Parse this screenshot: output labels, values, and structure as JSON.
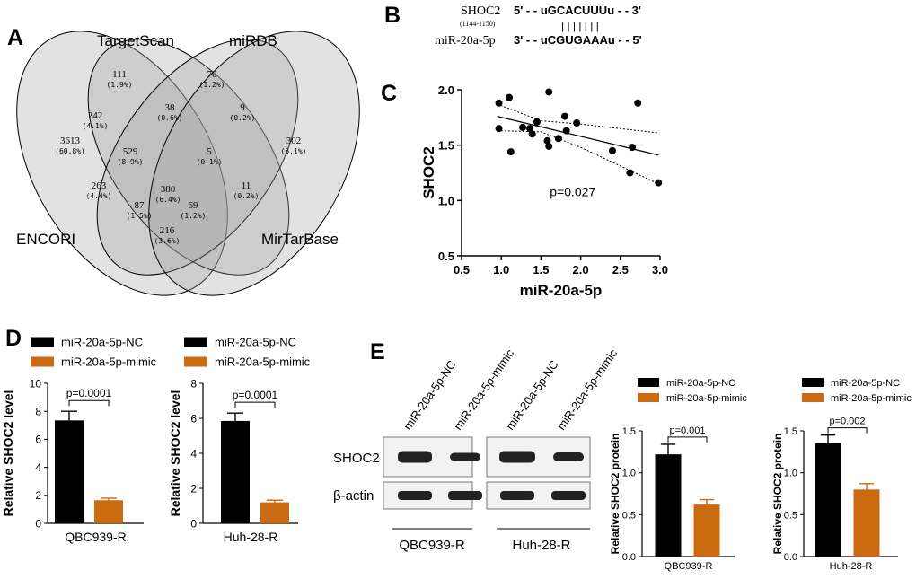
{
  "panel_labels": {
    "a": "A",
    "b": "B",
    "c": "C",
    "d": "D",
    "e": "E"
  },
  "colors": {
    "nc": "#000000",
    "mimic": "#cc6a12",
    "venn_fill": "#9e9e9e"
  },
  "venn": {
    "sets": [
      "TargetScan",
      "miRDB",
      "ENCORI",
      "MirTarBase"
    ],
    "regions": [
      {
        "count": "111",
        "pct": "(1.9%)"
      },
      {
        "count": "70",
        "pct": "(1.2%)"
      },
      {
        "count": "3613",
        "pct": "(60.8%)"
      },
      {
        "count": "242",
        "pct": "(4.1%)"
      },
      {
        "count": "38",
        "pct": "(0.6%)"
      },
      {
        "count": "9",
        "pct": "(0.2%)"
      },
      {
        "count": "302",
        "pct": "(5.1%)"
      },
      {
        "count": "529",
        "pct": "(8.9%)"
      },
      {
        "count": "5",
        "pct": "(0.1%)"
      },
      {
        "count": "380",
        "pct": "(6.4%)"
      },
      {
        "count": "263",
        "pct": "(4.4%)"
      },
      {
        "count": "11",
        "pct": "(0.2%)"
      },
      {
        "count": "87",
        "pct": "(1.5%)"
      },
      {
        "count": "69",
        "pct": "(1.2%)"
      },
      {
        "count": "216",
        "pct": "(3.6%)"
      }
    ]
  },
  "binding": {
    "gene": "SHOC2",
    "gene_pos": "(1144-1150)",
    "mirna": "miR-20a-5p",
    "gene_seq": "5' - - uGCACUUUu - - 3'",
    "mirna_seq": "3' - - uCGUGAAAu - - 5'",
    "pairs": "| | | | | | |"
  },
  "chart_data": [
    {
      "id": "C",
      "type": "scatter",
      "title": "",
      "xlabel": "miR-20a-5p",
      "ylabel": "SHOC2",
      "xlim": [
        0.5,
        3.0
      ],
      "ylim": [
        0.5,
        2.0
      ],
      "xticks": [
        "0.5",
        "1.0",
        "1.5",
        "2.0",
        "2.5",
        "3.0"
      ],
      "yticks": [
        "0.5",
        "1.0",
        "1.5",
        "2.0"
      ],
      "points": [
        {
          "x": 0.97,
          "y": 1.88
        },
        {
          "x": 0.97,
          "y": 1.65
        },
        {
          "x": 1.1,
          "y": 1.93
        },
        {
          "x": 1.12,
          "y": 1.44
        },
        {
          "x": 1.27,
          "y": 1.66
        },
        {
          "x": 1.36,
          "y": 1.65
        },
        {
          "x": 1.39,
          "y": 1.6
        },
        {
          "x": 1.45,
          "y": 1.71
        },
        {
          "x": 1.6,
          "y": 1.98
        },
        {
          "x": 1.58,
          "y": 1.54
        },
        {
          "x": 1.6,
          "y": 1.49
        },
        {
          "x": 1.72,
          "y": 1.56
        },
        {
          "x": 1.8,
          "y": 1.76
        },
        {
          "x": 1.82,
          "y": 1.63
        },
        {
          "x": 1.95,
          "y": 1.7
        },
        {
          "x": 2.4,
          "y": 1.45
        },
        {
          "x": 2.62,
          "y": 1.25
        },
        {
          "x": 2.65,
          "y": 1.48
        },
        {
          "x": 2.72,
          "y": 1.88
        },
        {
          "x": 2.98,
          "y": 1.16
        }
      ],
      "fit": {
        "x1": 0.95,
        "y1": 1.76,
        "x2": 2.98,
        "y2": 1.41
      },
      "ci_upper": [
        [
          0.95,
          1.87
        ],
        [
          1.5,
          1.72
        ],
        [
          2.0,
          1.69
        ],
        [
          2.98,
          1.61
        ]
      ],
      "ci_lower": [
        [
          0.95,
          1.63
        ],
        [
          1.5,
          1.62
        ],
        [
          2.0,
          1.48
        ],
        [
          2.98,
          1.15
        ]
      ],
      "annotation": "p=0.027"
    },
    {
      "id": "D1",
      "type": "bar",
      "categories": [
        "miR-20a-5p-NC",
        "miR-20a-5p-mimic"
      ],
      "values": [
        7.35,
        1.65
      ],
      "errors": [
        0.65,
        0.15
      ],
      "xlabel": "QBC939-R",
      "ylabel": "Relative SHOC2 level",
      "ylim": [
        0,
        10
      ],
      "yticks": [
        "0",
        "2",
        "4",
        "6",
        "8",
        "10"
      ],
      "pvalue": "p=0.0001",
      "legend": [
        "miR-20a-5p-NC",
        "miR-20a-5p-mimic"
      ]
    },
    {
      "id": "D2",
      "type": "bar",
      "categories": [
        "miR-20a-5p-NC",
        "miR-20a-5p-mimic"
      ],
      "values": [
        5.85,
        1.2
      ],
      "errors": [
        0.45,
        0.12
      ],
      "xlabel": "Huh-28-R",
      "ylabel": "Relative SHOC2 level",
      "ylim": [
        0,
        8
      ],
      "yticks": [
        "0",
        "2",
        "4",
        "6",
        "8"
      ],
      "pvalue": "p=0.0001",
      "legend": [
        "miR-20a-5p-NC",
        "miR-20a-5p-mimic"
      ]
    },
    {
      "id": "E1",
      "type": "bar",
      "categories": [
        "miR-20a-5p-NC",
        "miR-20a-5p-mimic"
      ],
      "values": [
        1.22,
        0.62
      ],
      "errors": [
        0.12,
        0.06
      ],
      "xlabel": "QBC939-R",
      "ylabel": "Relative SHOC2 protein",
      "ylim": [
        0,
        1.5
      ],
      "yticks": [
        "0.0",
        "0.5",
        "1.0",
        "1.5"
      ],
      "pvalue": "p=0.001",
      "legend": [
        "miR-20a-5p-NC",
        "miR-20a-5p-mimic"
      ]
    },
    {
      "id": "E2",
      "type": "bar",
      "categories": [
        "miR-20a-5p-NC",
        "miR-20a-5p-mimic"
      ],
      "values": [
        1.35,
        0.8
      ],
      "errors": [
        0.1,
        0.07
      ],
      "xlabel": "Huh-28-R",
      "ylabel": "Relative SHOC2 protein",
      "ylim": [
        0,
        1.5
      ],
      "yticks": [
        "0.0",
        "0.5",
        "1.0",
        "1.5"
      ],
      "pvalue": "p=0.002",
      "legend": [
        "miR-20a-5p-NC",
        "miR-20a-5p-mimic"
      ]
    }
  ],
  "western": {
    "lanes": [
      "miR-20a-5p-NC",
      "miR-20a-5p-mimic",
      "miR-20a-5p-NC",
      "miR-20a-5p-mimic"
    ],
    "rows": [
      "SHOC2",
      "β-actin"
    ],
    "groups": [
      "QBC939-R",
      "Huh-28-R"
    ]
  }
}
